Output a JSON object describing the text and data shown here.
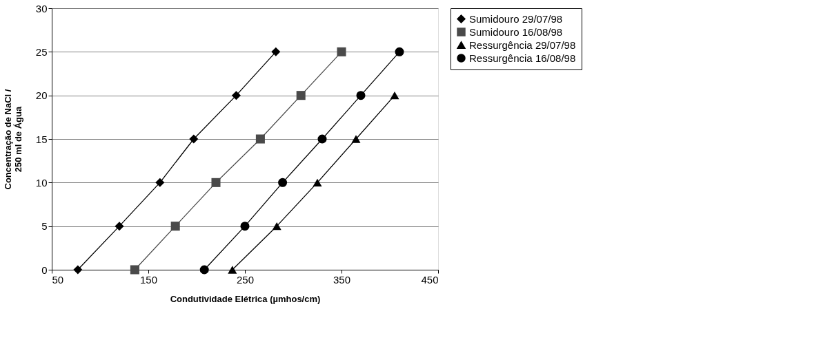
{
  "chart_data": {
    "type": "line",
    "xlabel": "Condutividade Elétrica (µmhos/cm)",
    "ylabel": "Concentração de NaCl /\n250 ml de Água",
    "xlim": [
      50,
      450
    ],
    "xticks": [
      50,
      150,
      250,
      350,
      450
    ],
    "ylim": [
      0,
      30
    ],
    "yticks": [
      0,
      5,
      10,
      15,
      20,
      25,
      30
    ],
    "grid": "y",
    "legend": "right",
    "series": [
      {
        "name": "Sumidouro 29/07/98",
        "color": "#000000",
        "marker": "diamond",
        "x": [
          77,
          120,
          162,
          197,
          241,
          282
        ],
        "values": [
          0,
          5,
          10,
          15,
          20,
          25
        ]
      },
      {
        "name": "Sumidouro 16/08/98",
        "color": "#4a4a4a",
        "marker": "square",
        "x": [
          136,
          178,
          220,
          266,
          308,
          350
        ],
        "values": [
          0,
          5,
          10,
          15,
          20,
          25
        ]
      },
      {
        "name": "Ressurgência 29/07/98",
        "color": "#000000",
        "marker": "triangle",
        "x": [
          237,
          283,
          325,
          365,
          405
        ],
        "values": [
          0,
          5,
          10,
          15,
          20
        ]
      },
      {
        "name": "Ressurgência 16/08/98",
        "color": "#000000",
        "marker": "circle",
        "x": [
          208,
          250,
          289,
          330,
          370,
          410
        ],
        "values": [
          0,
          5,
          10,
          15,
          20,
          25
        ]
      }
    ]
  }
}
